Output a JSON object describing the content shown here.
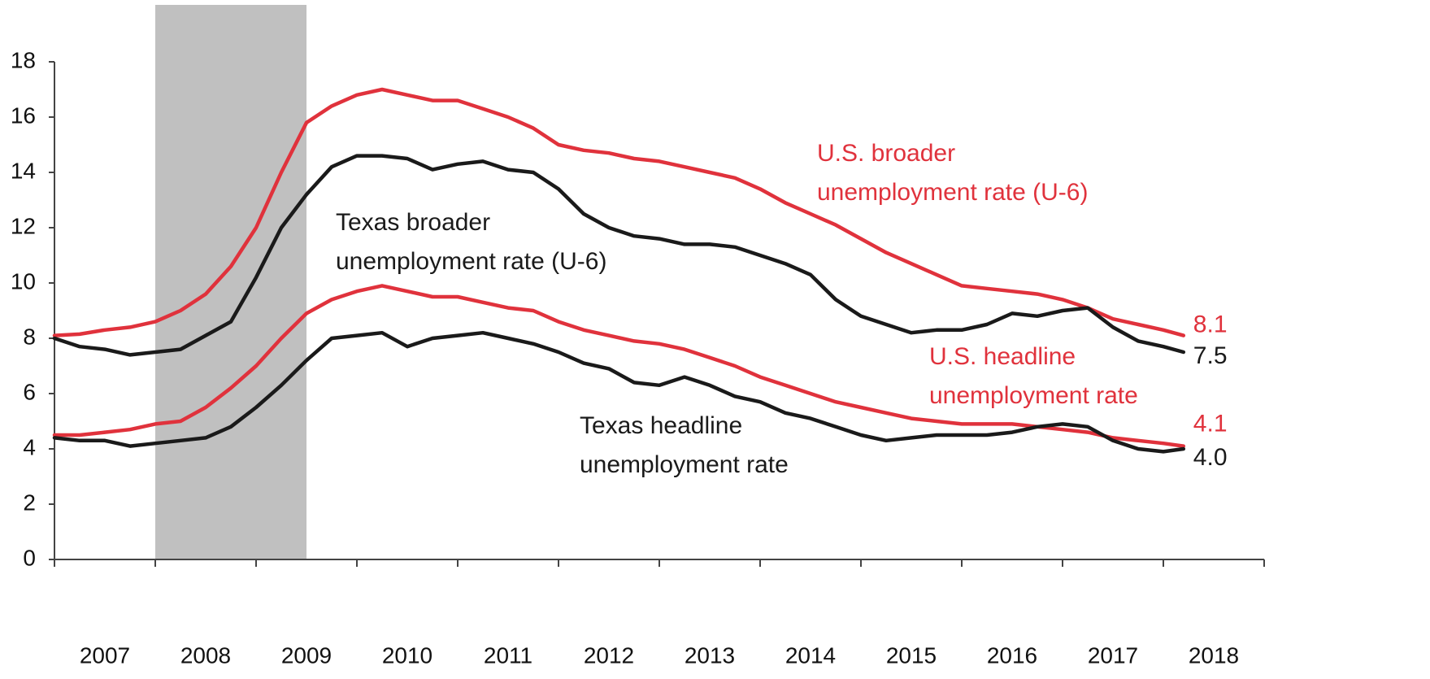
{
  "chart_data": {
    "type": "line",
    "categories": [
      "2007",
      "2008",
      "2009",
      "2010",
      "2011",
      "2012",
      "2013",
      "2014",
      "2015",
      "2016",
      "2017",
      "2018"
    ],
    "xlim": [
      2007,
      2019
    ],
    "xticks": [
      2007,
      2008,
      2009,
      2010,
      2011,
      2012,
      2013,
      2014,
      2015,
      2016,
      2017,
      2018,
      2019
    ],
    "ylim": [
      0,
      18
    ],
    "yticks": [
      0,
      2,
      4,
      6,
      8,
      10,
      12,
      14,
      16,
      18
    ],
    "shaded": {
      "x": [
        2008.0,
        2009.5
      ],
      "color": "#c0c0c0"
    },
    "x": [
      2007.0,
      2007.25,
      2007.5,
      2007.75,
      2008.0,
      2008.25,
      2008.5,
      2008.75,
      2009.0,
      2009.25,
      2009.5,
      2009.75,
      2010.0,
      2010.25,
      2010.5,
      2010.75,
      2011.0,
      2011.25,
      2011.5,
      2011.75,
      2012.0,
      2012.25,
      2012.5,
      2012.75,
      2013.0,
      2013.25,
      2013.5,
      2013.75,
      2014.0,
      2014.25,
      2014.5,
      2014.75,
      2015.0,
      2015.25,
      2015.5,
      2015.75,
      2016.0,
      2016.25,
      2016.5,
      2016.75,
      2017.0,
      2017.25,
      2017.5,
      2017.75,
      2018.0,
      2018.2
    ],
    "series": [
      {
        "name": [
          "U.S. broader",
          "unemployment rate (U-6)"
        ],
        "color": "#e0323c",
        "values": [
          8.1,
          8.15,
          8.3,
          8.4,
          8.6,
          9.0,
          9.6,
          10.6,
          12.0,
          14.0,
          15.8,
          16.4,
          16.8,
          17.0,
          16.8,
          16.6,
          16.6,
          16.3,
          16.0,
          15.6,
          15.0,
          14.8,
          14.7,
          14.5,
          14.4,
          14.2,
          14.0,
          13.8,
          13.4,
          12.9,
          12.5,
          12.1,
          11.6,
          11.1,
          10.7,
          10.3,
          9.9,
          9.8,
          9.7,
          9.6,
          9.4,
          9.1,
          8.7,
          8.5,
          8.3,
          8.1
        ]
      },
      {
        "name": [
          "Texas broader",
          "unemployment rate (U-6)"
        ],
        "color": "#1a1a1a",
        "values": [
          8.0,
          7.7,
          7.6,
          7.4,
          7.5,
          7.6,
          8.1,
          8.6,
          10.2,
          12.0,
          13.2,
          14.2,
          14.6,
          14.6,
          14.5,
          14.1,
          14.3,
          14.4,
          14.1,
          14.0,
          13.4,
          12.5,
          12.0,
          11.7,
          11.6,
          11.4,
          11.4,
          11.3,
          11.0,
          10.7,
          10.3,
          9.4,
          8.8,
          8.5,
          8.2,
          8.3,
          8.3,
          8.5,
          8.9,
          8.8,
          9.0,
          9.1,
          8.4,
          7.9,
          7.7,
          7.5
        ]
      },
      {
        "name": [
          "U.S. headline",
          "unemployment rate"
        ],
        "color": "#e0323c",
        "values": [
          4.5,
          4.5,
          4.6,
          4.7,
          4.9,
          5.0,
          5.5,
          6.2,
          7.0,
          8.0,
          8.9,
          9.4,
          9.7,
          9.9,
          9.7,
          9.5,
          9.5,
          9.3,
          9.1,
          9.0,
          8.6,
          8.3,
          8.1,
          7.9,
          7.8,
          7.6,
          7.3,
          7.0,
          6.6,
          6.3,
          6.0,
          5.7,
          5.5,
          5.3,
          5.1,
          5.0,
          4.9,
          4.9,
          4.9,
          4.8,
          4.7,
          4.6,
          4.4,
          4.3,
          4.2,
          4.1
        ]
      },
      {
        "name": [
          "Texas headline",
          "unemployment rate"
        ],
        "color": "#1a1a1a",
        "values": [
          4.4,
          4.3,
          4.3,
          4.1,
          4.2,
          4.3,
          4.4,
          4.8,
          5.5,
          6.3,
          7.2,
          8.0,
          8.1,
          8.2,
          7.7,
          8.0,
          8.1,
          8.2,
          8.0,
          7.8,
          7.5,
          7.1,
          6.9,
          6.4,
          6.3,
          6.6,
          6.3,
          5.9,
          5.7,
          5.3,
          5.1,
          4.8,
          4.5,
          4.3,
          4.4,
          4.5,
          4.5,
          4.5,
          4.6,
          4.8,
          4.9,
          4.8,
          4.3,
          4.0,
          3.9,
          4.0
        ],
        "value_labels": [
          null,
          null,
          null,
          null,
          null,
          null,
          null,
          null,
          null,
          null,
          null,
          null,
          null,
          null,
          null,
          null,
          null,
          null,
          null,
          null,
          null,
          null,
          null,
          null,
          null,
          null,
          null,
          null,
          null,
          null,
          null,
          null,
          null,
          null,
          null,
          null,
          null,
          null,
          null,
          null,
          null,
          null,
          null,
          null,
          null,
          "4.0"
        ]
      }
    ]
  }
}
